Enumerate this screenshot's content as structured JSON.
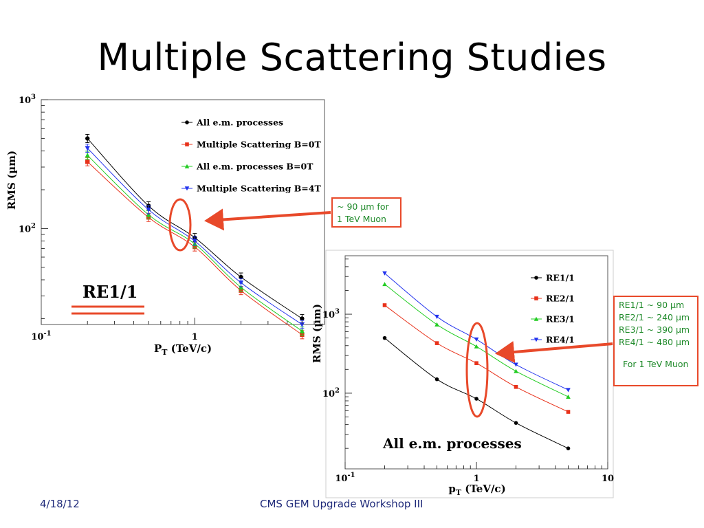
{
  "slide": {
    "title": "Multiple Scattering Studies",
    "footer_date": "4/18/12",
    "footer_center": "CMS GEM Upgrade Workshop III"
  },
  "callouts": {
    "left": {
      "line1": "~ 90 µm for",
      "line2": "1 TeV Muon"
    },
    "right": {
      "lines": [
        "RE1/1 ~ 90 µm",
        "RE2/1 ~ 240 µm",
        "RE3/1 ~ 390 µm",
        "RE4/1 ~ 480 µm"
      ],
      "note": "For 1 TeV Muon"
    }
  },
  "colors": {
    "highlight": "#e8492a",
    "callout_text": "#1f8a2a",
    "footer_text": "#1f2a7a"
  },
  "chart_data": [
    {
      "type": "line",
      "title": "",
      "panel_label": "RE1/1",
      "xlabel": "P",
      "xlabel_sub": "T",
      "xlabel_unit": " (TeV/c)",
      "ylabel": "RMS (µm)",
      "x_scale": "log",
      "y_scale": "log",
      "xlim": [
        0.1,
        7
      ],
      "ylim": [
        18,
        1000
      ],
      "x_ticks": [
        {
          "base": "10",
          "exp": "-1",
          "value": 0.1
        },
        {
          "base": "1",
          "exp": "",
          "value": 1
        }
      ],
      "y_ticks": [
        {
          "base": "10",
          "exp": "2",
          "value": 100
        },
        {
          "base": "10",
          "exp": "3",
          "value": 1000
        }
      ],
      "legend_position": "top-right",
      "x": [
        0.2,
        0.5,
        1,
        2,
        5
      ],
      "series": [
        {
          "name": "All e.m. processes",
          "color": "#000000",
          "marker": "circle",
          "values": [
            500,
            150,
            85,
            42,
            20
          ]
        },
        {
          "name": "Multiple Scattering B=0T",
          "color": "#e8311a",
          "marker": "square",
          "values": [
            330,
            122,
            72,
            33,
            15
          ]
        },
        {
          "name": "All e.m. processes  B=0T",
          "color": "#22cc22",
          "marker": "triangle-up",
          "values": [
            370,
            128,
            76,
            35,
            16
          ]
        },
        {
          "name": "Multiple Scattering B=4T",
          "color": "#2233ee",
          "marker": "triangle-down",
          "values": [
            420,
            140,
            80,
            38,
            18
          ]
        }
      ]
    },
    {
      "type": "line",
      "title": "",
      "panel_label": "All e.m. processes",
      "xlabel": "p",
      "xlabel_sub": "T",
      "xlabel_unit": " (TeV/c)",
      "ylabel": "RMS (µm)",
      "x_scale": "log",
      "y_scale": "log",
      "xlim": [
        0.1,
        10
      ],
      "ylim": [
        11,
        5500
      ],
      "x_ticks": [
        {
          "base": "10",
          "exp": "-1",
          "value": 0.1
        },
        {
          "base": "1",
          "exp": "",
          "value": 1
        },
        {
          "base": "10",
          "exp": "",
          "value": 10
        }
      ],
      "y_ticks": [
        {
          "base": "10",
          "exp": "2",
          "value": 100
        },
        {
          "base": "10",
          "exp": "3",
          "value": 1000
        }
      ],
      "legend_position": "top-right",
      "x": [
        0.2,
        0.5,
        1,
        2,
        5
      ],
      "series": [
        {
          "name": "RE1/1",
          "color": "#000000",
          "marker": "circle",
          "values": [
            500,
            150,
            85,
            42,
            20
          ]
        },
        {
          "name": "RE2/1",
          "color": "#e8311a",
          "marker": "square",
          "values": [
            1300,
            430,
            240,
            120,
            58
          ]
        },
        {
          "name": "RE3/1",
          "color": "#22cc22",
          "marker": "triangle-up",
          "values": [
            2400,
            740,
            390,
            190,
            90
          ]
        },
        {
          "name": "RE4/1",
          "color": "#2233ee",
          "marker": "triangle-down",
          "values": [
            3300,
            930,
            480,
            230,
            110
          ]
        }
      ]
    }
  ]
}
